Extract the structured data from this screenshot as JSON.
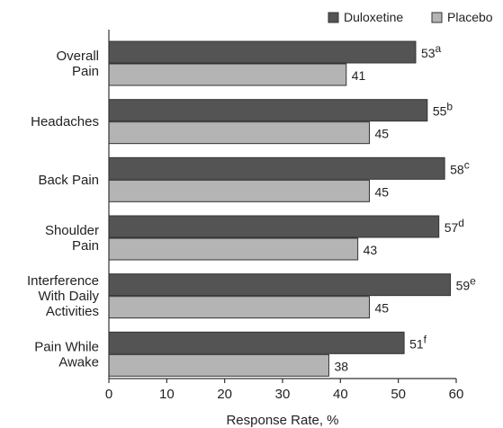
{
  "chart_data": {
    "type": "bar",
    "orientation": "horizontal",
    "categories": [
      [
        "Overall",
        "Pain"
      ],
      [
        "Headaches"
      ],
      [
        "Back Pain"
      ],
      [
        "Shoulder",
        "Pain"
      ],
      [
        "Interference",
        "With Daily",
        "Activities"
      ],
      [
        "Pain While",
        "Awake"
      ]
    ],
    "series": [
      {
        "name": "Duloxetine",
        "color": "#545454",
        "values": [
          53,
          55,
          58,
          57,
          59,
          51
        ],
        "labels": [
          "53",
          "55",
          "58",
          "57",
          "59",
          "51"
        ],
        "superscripts": [
          "a",
          "b",
          "c",
          "d",
          "e",
          "f"
        ]
      },
      {
        "name": "Placebo",
        "color": "#b4b4b4",
        "values": [
          41,
          45,
          45,
          43,
          45,
          38
        ],
        "labels": [
          "41",
          "45",
          "45",
          "43",
          "45",
          "38"
        ],
        "superscripts": [
          "",
          "",
          "",
          "",
          "",
          ""
        ]
      }
    ],
    "xlabel": "Response Rate, %",
    "xlim": [
      0,
      60
    ],
    "xticks": [
      0,
      10,
      20,
      30,
      40,
      50,
      60
    ],
    "grid": false,
    "legend_position": "top-right"
  }
}
